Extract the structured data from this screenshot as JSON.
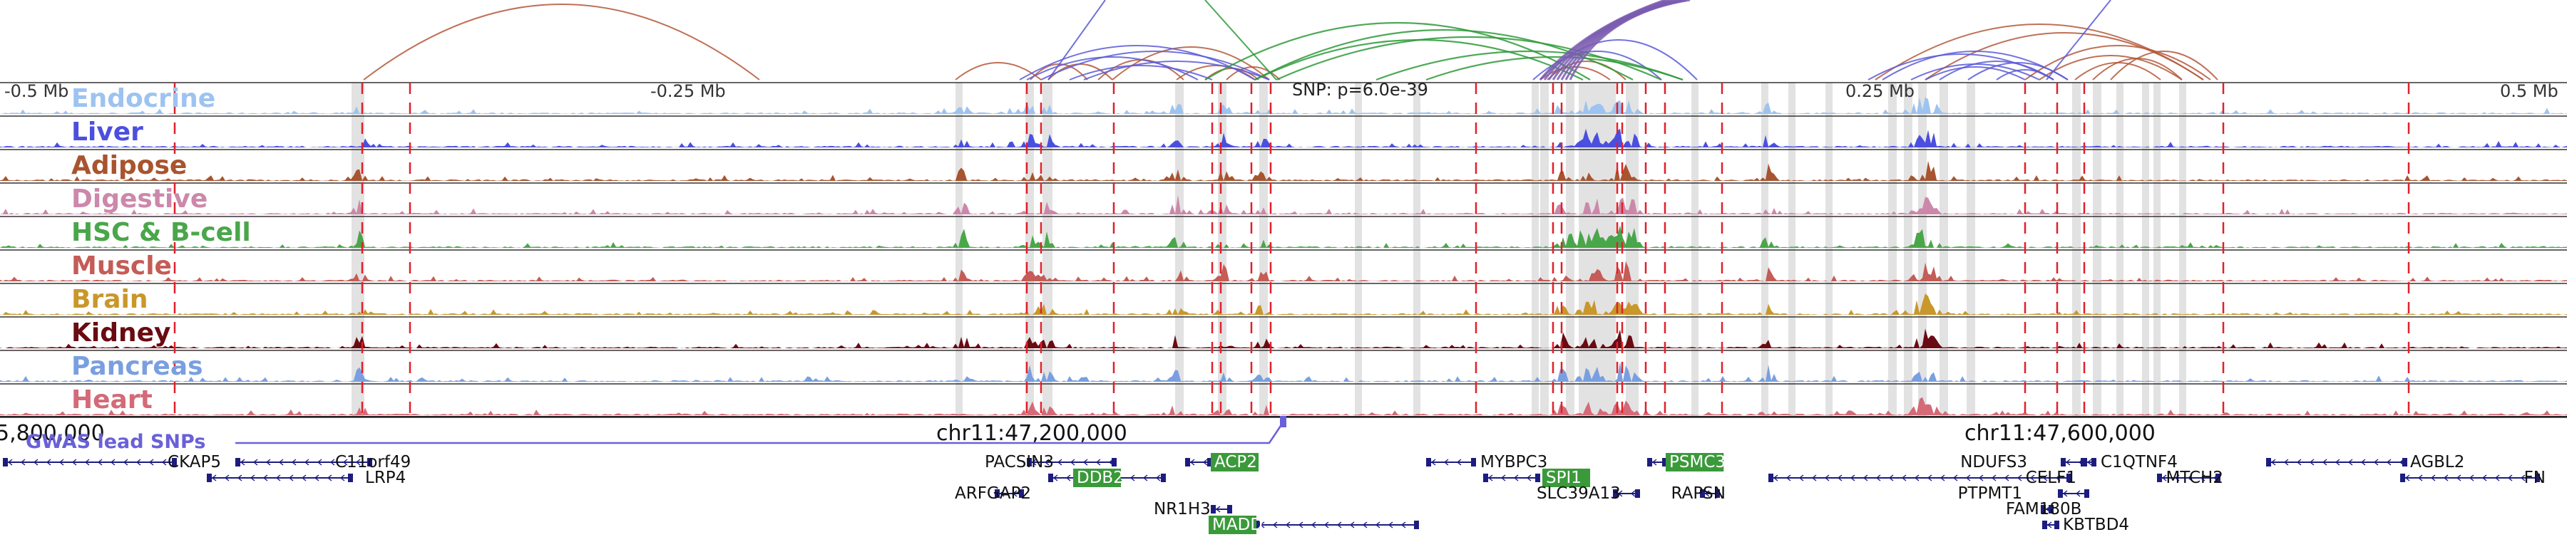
{
  "scale_labels": [
    "-0.5 Mb",
    "-0.25 Mb",
    "0.25 Mb",
    "0.5 Mb"
  ],
  "snp_label": "SNP: p=6.0e-39",
  "gwas_label": "GWAS lead SNPs",
  "coordinates": [
    "5,800,000",
    "chr11:47,200,000",
    "chr11:47,600,000"
  ],
  "tracks": [
    {
      "name": "Endocrine",
      "color": "#9dc3f0"
    },
    {
      "name": "Liver",
      "color": "#4b4fe0"
    },
    {
      "name": "Adipose",
      "color": "#a8542e"
    },
    {
      "name": "Digestive",
      "color": "#cc88aa"
    },
    {
      "name": "HSC & B-cell",
      "color": "#4aa64a"
    },
    {
      "name": "Muscle",
      "color": "#c45c57"
    },
    {
      "name": "Brain",
      "color": "#c9972a"
    },
    {
      "name": "Kidney",
      "color": "#6a0a12"
    },
    {
      "name": "Pancreas",
      "color": "#7a9fe0"
    },
    {
      "name": "Heart",
      "color": "#d46a78"
    }
  ],
  "genes": [
    {
      "name": "CKAP5",
      "highlight": false
    },
    {
      "name": "C11orf49",
      "highlight": false
    },
    {
      "name": "LRP4",
      "highlight": false
    },
    {
      "name": "PACSIN3",
      "highlight": false
    },
    {
      "name": "ACP2",
      "highlight": true
    },
    {
      "name": "DDB2",
      "highlight": true
    },
    {
      "name": "ARFGAP2",
      "highlight": false
    },
    {
      "name": "NR1H3",
      "highlight": false
    },
    {
      "name": "MADD",
      "highlight": true
    },
    {
      "name": "MYBPC3",
      "highlight": false
    },
    {
      "name": "SPI1",
      "highlight": true
    },
    {
      "name": "SLC39A13",
      "highlight": false
    },
    {
      "name": "PSMC3",
      "highlight": true
    },
    {
      "name": "RAPSN",
      "highlight": false
    },
    {
      "name": "NDUFS3",
      "highlight": false
    },
    {
      "name": "C1QTNF4",
      "highlight": false
    },
    {
      "name": "CELF1",
      "highlight": false
    },
    {
      "name": "PTPMT1",
      "highlight": false
    },
    {
      "name": "FAM180B",
      "highlight": false
    },
    {
      "name": "KBTBD4",
      "highlight": false
    },
    {
      "name": "MTCH2",
      "highlight": false
    },
    {
      "name": "AGBL2",
      "highlight": false
    },
    {
      "name": "FN",
      "highlight": false
    }
  ],
  "colors": {
    "arc_brown": "#b4583a",
    "arc_blue": "#5a5ad8",
    "arc_green": "#2f9a3a",
    "arc_purple": "#7a5cb0",
    "red_marker": "#e0202a",
    "gray_band": "#d8d8d8",
    "gene_highlight": "#3a9a3a",
    "gwas_line": "#6a60d8"
  }
}
